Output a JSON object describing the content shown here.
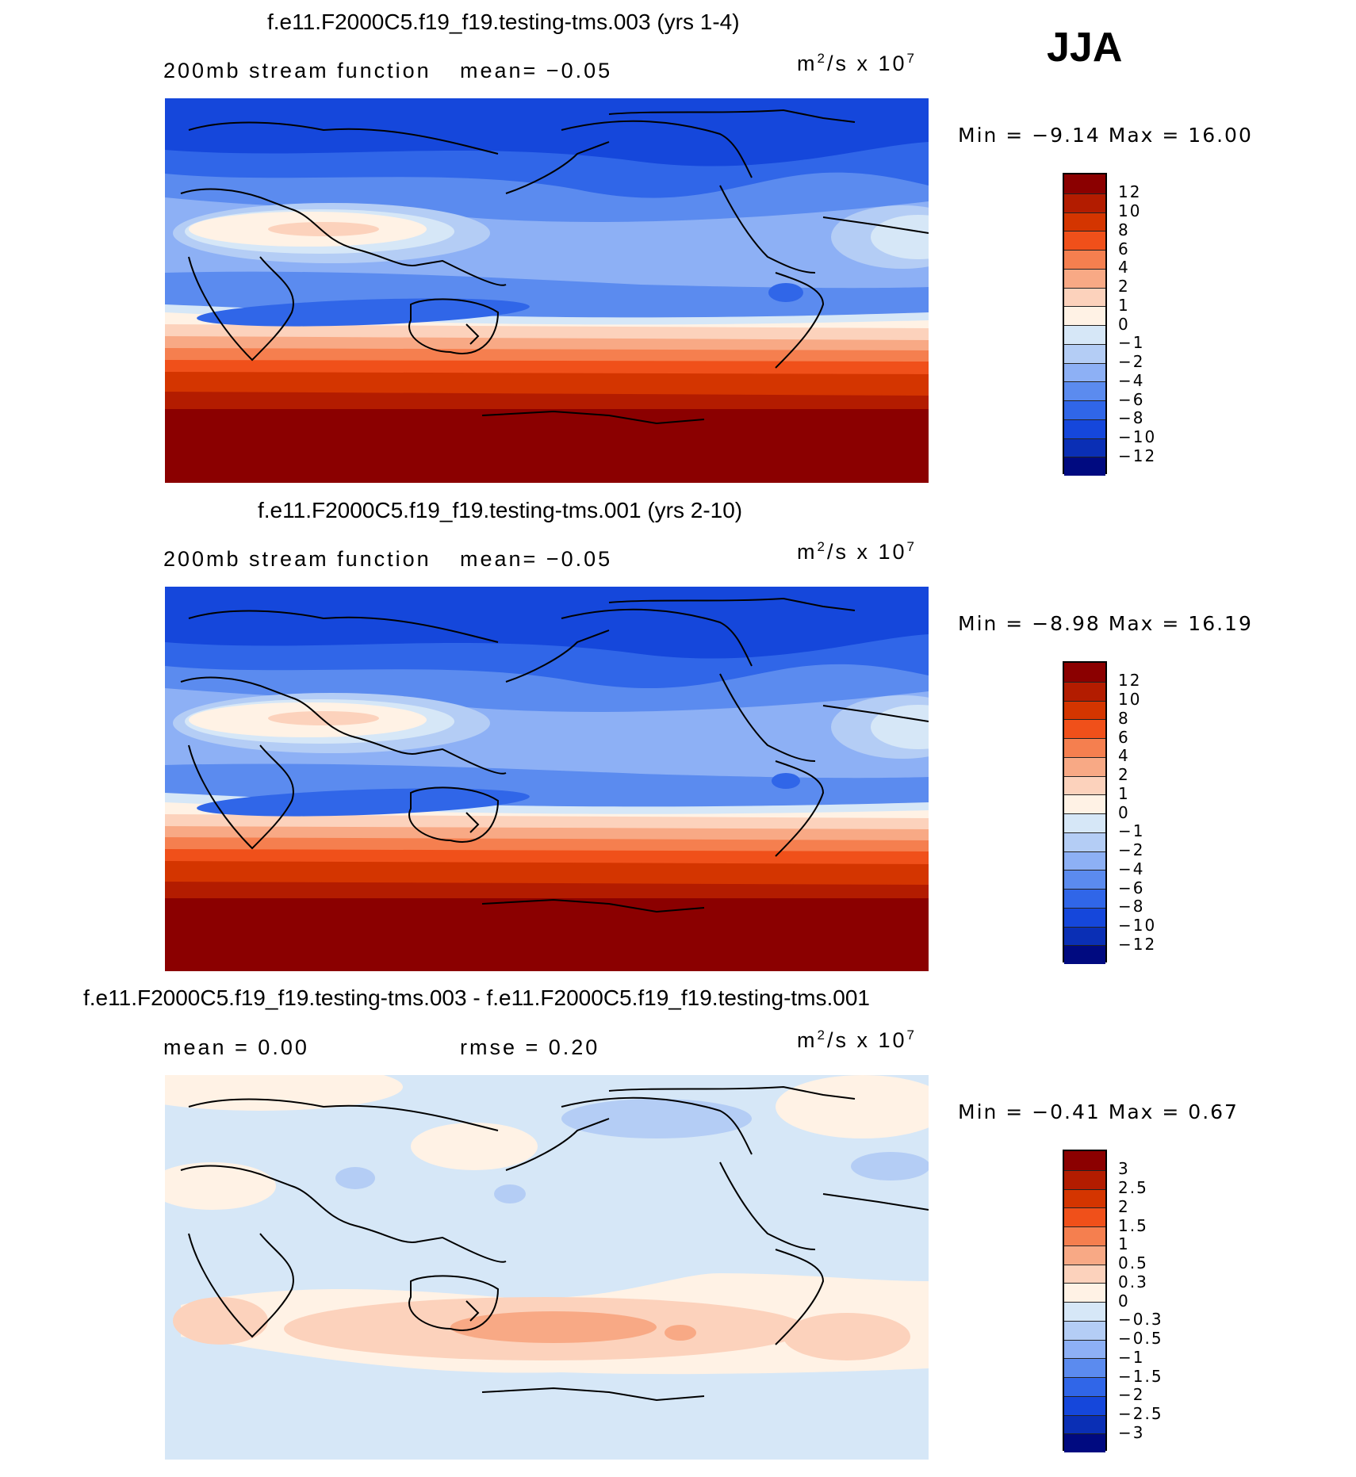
{
  "season": "JJA",
  "panels": [
    {
      "title": "f.e11.F2000C5.f19_f19.testing-tms.003 (yrs 1-4)",
      "left_text": "200mb stream function",
      "mean_text": "mean=   −0.05",
      "units_base": "m",
      "units_exp1": "2",
      "units_mid": "/s x 10",
      "units_exp2": "7",
      "minmax": "Min =   −9.14 Max =   16.00",
      "colorbar_labels": [
        "12",
        "10",
        "8",
        "6",
        "4",
        "2",
        "1",
        "0",
        "−1",
        "−2",
        "−4",
        "−6",
        "−8",
        "−10",
        "−12"
      ]
    },
    {
      "title": "f.e11.F2000C5.f19_f19.testing-tms.001 (yrs 2-10)",
      "left_text": "200mb stream function",
      "mean_text": "mean=   −0.05",
      "units_base": "m",
      "units_exp1": "2",
      "units_mid": "/s x 10",
      "units_exp2": "7",
      "minmax": "Min =   −8.98 Max =   16.19",
      "colorbar_labels": [
        "12",
        "10",
        "8",
        "6",
        "4",
        "2",
        "1",
        "0",
        "−1",
        "−2",
        "−4",
        "−6",
        "−8",
        "−10",
        "−12"
      ]
    },
    {
      "title": "f.e11.F2000C5.f19_f19.testing-tms.003 - f.e11.F2000C5.f19_f19.testing-tms.001",
      "left_text": "mean =    0.00",
      "mean_text": "rmse =    0.20",
      "units_base": "m",
      "units_exp1": "2",
      "units_mid": "/s x 10",
      "units_exp2": "7",
      "minmax": "Min =   −0.41 Max =    0.67",
      "colorbar_labels": [
        "3",
        "2.5",
        "2",
        "1.5",
        "1",
        "0.5",
        "0.3",
        "0",
        "−0.3",
        "−0.5",
        "−1",
        "−1.5",
        "−2",
        "−2.5",
        "−3"
      ]
    }
  ],
  "colors": {
    "scale": [
      "#8b0000",
      "#b31c00",
      "#d43500",
      "#f0501a",
      "#f57f4f",
      "#f8a985",
      "#fcd2bc",
      "#fff2e5",
      "#d6e7f7",
      "#b4cdf5",
      "#8db0f5",
      "#5b8bef",
      "#3066e8",
      "#1547db",
      "#0a2fb5",
      "#000a80"
    ]
  }
}
